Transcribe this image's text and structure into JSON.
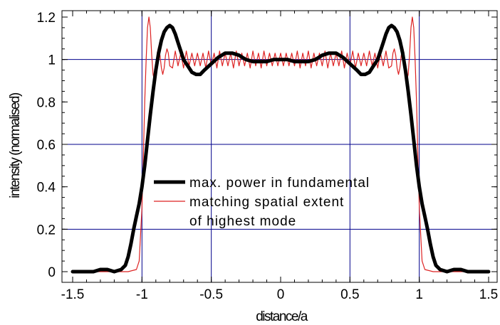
{
  "chart_data": {
    "type": "line",
    "title": "",
    "xlabel": "distance/a",
    "ylabel": "intensity (normalised)",
    "xlim": [
      -1.62,
      1.62
    ],
    "ylim": [
      -0.05,
      1.22
    ],
    "x_ticks": [
      -1.5,
      -1,
      -0.5,
      0,
      0.5,
      1,
      1.5
    ],
    "x_tick_labels": [
      "-1.5",
      "-1",
      "-0.5",
      "0",
      "0.5",
      "1",
      "1.5"
    ],
    "y_ticks": [
      0,
      0.2,
      0.4,
      0.6,
      0.8,
      1,
      1.2
    ],
    "y_tick_labels": [
      "0",
      "0.2",
      "0.4",
      "0.6",
      "0.8",
      "1",
      "1.2"
    ],
    "grid": true,
    "grid_x": [
      -1,
      -0.5,
      0.5,
      1
    ],
    "grid_y": [
      0.2,
      0.6,
      1
    ],
    "legend_position": "center",
    "series": [
      {
        "name": "max. power in fundamental",
        "color": "#000000",
        "x": [
          -1.5,
          -1.35,
          -1.3,
          -1.25,
          -1.2,
          -1.15,
          -1.12,
          -1.1,
          -1.08,
          -1.06,
          -1.04,
          -1.02,
          -1.0,
          -0.98,
          -0.96,
          -0.94,
          -0.92,
          -0.9,
          -0.88,
          -0.86,
          -0.84,
          -0.82,
          -0.8,
          -0.78,
          -0.76,
          -0.74,
          -0.72,
          -0.7,
          -0.67,
          -0.64,
          -0.61,
          -0.58,
          -0.55,
          -0.5,
          -0.45,
          -0.4,
          -0.35,
          -0.3,
          -0.25,
          -0.2,
          -0.15,
          -0.1,
          -0.05,
          0.0,
          0.05,
          0.1,
          0.15,
          0.2,
          0.25,
          0.3,
          0.35,
          0.4,
          0.45,
          0.5,
          0.55,
          0.58,
          0.61,
          0.64,
          0.67,
          0.7,
          0.72,
          0.74,
          0.76,
          0.78,
          0.8,
          0.82,
          0.84,
          0.86,
          0.88,
          0.9,
          0.92,
          0.94,
          0.96,
          0.98,
          1.0,
          1.02,
          1.04,
          1.06,
          1.08,
          1.1,
          1.12,
          1.15,
          1.2,
          1.25,
          1.3,
          1.35,
          1.5
        ],
        "y": [
          0.0,
          0.0,
          0.01,
          0.01,
          0.0,
          0.01,
          0.03,
          0.07,
          0.13,
          0.2,
          0.26,
          0.32,
          0.4,
          0.5,
          0.62,
          0.74,
          0.85,
          0.95,
          1.03,
          1.09,
          1.13,
          1.15,
          1.16,
          1.15,
          1.12,
          1.08,
          1.04,
          1.0,
          0.97,
          0.94,
          0.93,
          0.93,
          0.95,
          0.98,
          1.01,
          1.03,
          1.03,
          1.02,
          1.0,
          0.99,
          0.99,
          0.99,
          1.0,
          1.0,
          1.0,
          0.99,
          0.99,
          0.99,
          1.0,
          1.02,
          1.03,
          1.03,
          1.01,
          0.98,
          0.95,
          0.93,
          0.93,
          0.94,
          0.97,
          1.0,
          1.04,
          1.08,
          1.12,
          1.15,
          1.16,
          1.15,
          1.13,
          1.09,
          1.03,
          0.95,
          0.85,
          0.74,
          0.62,
          0.5,
          0.4,
          0.32,
          0.26,
          0.2,
          0.13,
          0.07,
          0.03,
          0.01,
          0.0,
          0.01,
          0.01,
          0.0,
          0.0
        ]
      },
      {
        "name": "matching spatial extent of highest mode",
        "color": "#dd2222",
        "x": [
          -1.5,
          -1.1,
          -1.04,
          -1.02,
          -1.0,
          -0.99,
          -0.98,
          -0.97,
          -0.96,
          -0.95,
          -0.94,
          -0.93,
          -0.92,
          -0.91,
          -0.9,
          -0.89,
          -0.88,
          -0.87,
          -0.86,
          -0.85,
          -0.84,
          -0.83,
          -0.82,
          -0.81,
          -0.8,
          -0.78,
          -0.76,
          -0.74,
          -0.72,
          -0.7,
          -0.68,
          -0.66,
          -0.64,
          -0.62,
          -0.6,
          -0.58,
          -0.56,
          -0.54,
          -0.52,
          -0.5,
          -0.48,
          -0.46,
          -0.44,
          -0.42,
          -0.4,
          -0.38,
          -0.36,
          -0.34,
          -0.32,
          -0.3,
          -0.28,
          -0.26,
          -0.24,
          -0.22,
          -0.2,
          -0.18,
          -0.16,
          -0.14,
          -0.12,
          -0.1,
          -0.08,
          -0.06,
          -0.04,
          -0.02,
          0.0,
          0.02,
          0.04,
          0.06,
          0.08,
          0.1,
          0.12,
          0.14,
          0.16,
          0.18,
          0.2,
          0.22,
          0.24,
          0.26,
          0.28,
          0.3,
          0.32,
          0.34,
          0.36,
          0.38,
          0.4,
          0.42,
          0.44,
          0.46,
          0.48,
          0.5,
          0.52,
          0.54,
          0.56,
          0.58,
          0.6,
          0.62,
          0.64,
          0.66,
          0.68,
          0.7,
          0.72,
          0.74,
          0.76,
          0.78,
          0.8,
          0.81,
          0.82,
          0.83,
          0.84,
          0.85,
          0.86,
          0.87,
          0.88,
          0.89,
          0.9,
          0.91,
          0.92,
          0.93,
          0.94,
          0.95,
          0.96,
          0.97,
          0.98,
          0.99,
          1.0,
          1.02,
          1.04,
          1.1,
          1.5
        ],
        "y": [
          0.0,
          0.0,
          0.01,
          0.05,
          0.3,
          0.55,
          0.8,
          1.0,
          1.15,
          1.2,
          1.15,
          1.02,
          0.93,
          0.9,
          0.95,
          1.03,
          1.06,
          1.02,
          0.96,
          0.93,
          0.96,
          1.02,
          1.05,
          1.03,
          0.97,
          0.96,
          1.04,
          0.97,
          1.03,
          0.96,
          1.04,
          0.97,
          1.03,
          0.97,
          1.03,
          0.97,
          1.03,
          0.96,
          1.04,
          0.97,
          1.03,
          0.96,
          1.04,
          0.97,
          1.03,
          0.97,
          1.03,
          0.96,
          1.04,
          0.97,
          1.03,
          0.97,
          1.03,
          0.96,
          1.04,
          0.97,
          1.03,
          0.96,
          1.04,
          0.97,
          1.03,
          0.97,
          1.03,
          0.97,
          1.03,
          0.97,
          1.03,
          0.97,
          1.03,
          0.97,
          1.04,
          0.96,
          1.03,
          0.97,
          1.04,
          0.96,
          1.03,
          0.97,
          1.03,
          0.97,
          1.04,
          0.96,
          1.03,
          0.97,
          1.03,
          0.97,
          1.04,
          0.96,
          1.03,
          0.97,
          1.04,
          0.96,
          1.03,
          0.97,
          1.03,
          0.97,
          1.04,
          0.97,
          1.03,
          0.96,
          1.03,
          0.97,
          1.04,
          0.96,
          0.97,
          1.03,
          1.05,
          1.02,
          0.96,
          0.93,
          0.96,
          1.02,
          1.06,
          1.03,
          0.95,
          0.9,
          0.93,
          1.02,
          1.15,
          1.2,
          1.15,
          1.0,
          0.8,
          0.55,
          0.3,
          0.05,
          0.01,
          0.0,
          0.0
        ]
      }
    ],
    "legend": {
      "items": [
        {
          "lines": [
            "max. power in fundamental"
          ],
          "color": "#000000",
          "width": 5
        },
        {
          "lines": [
            "matching spatial extent",
            "of highest mode"
          ],
          "color": "#dd2222",
          "width": 1.2
        }
      ]
    },
    "colors": {
      "grid": "#00008b",
      "axes": "#000000",
      "background": "#ffffff"
    }
  }
}
